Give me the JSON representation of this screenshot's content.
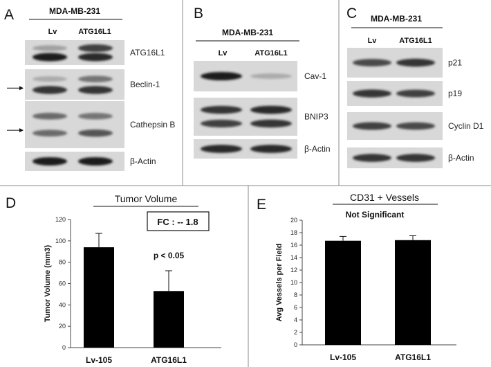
{
  "panels": {
    "a": {
      "letter": "A",
      "cell_line": "MDA-MB-231",
      "lanes": [
        "Lv",
        "ATG16L1"
      ],
      "blots": [
        {
          "label": "ATG16L1",
          "arrow": false,
          "bands": [
            [
              0.35,
              0.8
            ],
            [
              0.95,
              0.9
            ]
          ]
        },
        {
          "label": "Beclin-1",
          "arrow": true,
          "bands": [
            [
              0.3,
              0.55
            ],
            [
              0.85,
              0.85
            ]
          ]
        },
        {
          "label": "Cathepsin B",
          "arrow": true,
          "bands": [
            [
              0.6,
              0.55
            ],
            [
              0.6,
              0.7
            ]
          ]
        },
        {
          "label": "β-Actin",
          "arrow": false,
          "bands": [
            [
              0.95,
              0.95
            ]
          ]
        }
      ]
    },
    "b": {
      "letter": "B",
      "cell_line": "MDA-MB-231",
      "lanes": [
        "Lv",
        "ATG16L1"
      ],
      "blots": [
        {
          "label": "Cav-1",
          "bands": [
            [
              0.95,
              0.3
            ]
          ]
        },
        {
          "label": "BNIP3",
          "bands": [
            [
              0.85,
              0.9
            ],
            [
              0.8,
              0.85
            ]
          ]
        },
        {
          "label": "β-Actin",
          "bands": [
            [
              0.9,
              0.9
            ]
          ]
        }
      ]
    },
    "c": {
      "letter": "C",
      "cell_line": "MDA-MB-231",
      "lanes": [
        "Lv",
        "ATG16L1"
      ],
      "blots": [
        {
          "label": "p21",
          "bands": [
            [
              0.75,
              0.85
            ]
          ]
        },
        {
          "label": "p19",
          "bands": [
            [
              0.85,
              0.8
            ]
          ]
        },
        {
          "label": "Cyclin D1",
          "bands": [
            [
              0.8,
              0.75
            ]
          ]
        },
        {
          "label": "β-Actin",
          "bands": [
            [
              0.85,
              0.85
            ]
          ]
        }
      ]
    },
    "d": {
      "letter": "D",
      "annotation_box": "FC : -- 1.8",
      "pvalue": "p < 0.05"
    },
    "e": {
      "letter": "E",
      "subtitle": "Not Significant"
    }
  },
  "chart_data": [
    {
      "type": "bar",
      "title": "Tumor Volume",
      "categories": [
        "Lv-105",
        "ATG16L1"
      ],
      "values": [
        94,
        53
      ],
      "errors": [
        13,
        19
      ],
      "ylabel": "Tumor Volume (mm3)",
      "xlabel": "",
      "ylim": [
        0,
        120
      ],
      "yticks": [
        0,
        20,
        40,
        60,
        80,
        100,
        120
      ],
      "grid": false,
      "bar_color": "#000000"
    },
    {
      "type": "bar",
      "title": "CD31 + Vessels",
      "categories": [
        "Lv-105",
        "ATG16L1"
      ],
      "values": [
        16.7,
        16.8
      ],
      "errors": [
        0.7,
        0.7
      ],
      "ylabel": "Avg Vessels per Field",
      "xlabel": "",
      "ylim": [
        0,
        20
      ],
      "yticks": [
        0,
        2,
        4,
        6,
        8,
        10,
        12,
        14,
        16,
        18,
        20
      ],
      "grid": false,
      "bar_color": "#000000"
    }
  ]
}
